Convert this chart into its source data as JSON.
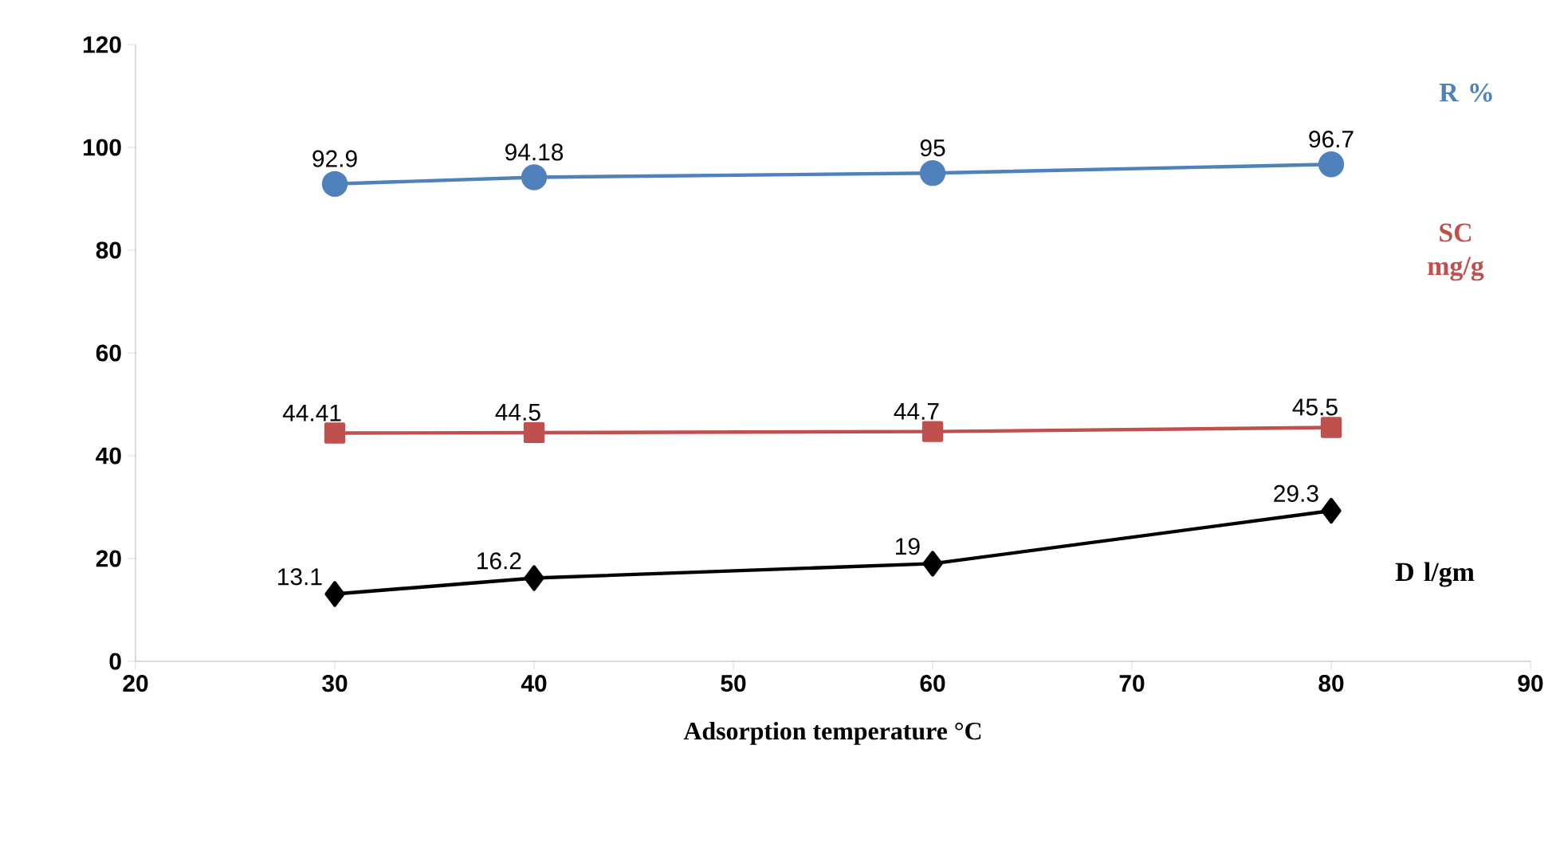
{
  "chart_data": {
    "type": "line",
    "xlabel": "Adsorption temperature °C",
    "x": [
      30,
      40,
      60,
      80
    ],
    "series": [
      {
        "name": "R %",
        "color": "#4f81bd",
        "marker": "circle",
        "values": [
          92.9,
          94.18,
          95,
          96.7
        ]
      },
      {
        "name": "SC mg/g",
        "color": "#c0504d",
        "marker": "square",
        "values": [
          44.41,
          44.5,
          44.7,
          45.5
        ]
      },
      {
        "name": "D l/gm",
        "color": "#000000",
        "marker": "diamond",
        "values": [
          13.1,
          16.2,
          19,
          29.3
        ]
      }
    ],
    "xlim": [
      20,
      90
    ],
    "xticks": [
      20,
      30,
      40,
      50,
      60,
      70,
      80,
      90
    ],
    "ylim": [
      0,
      120
    ],
    "yticks": [
      0,
      20,
      40,
      60,
      80,
      100,
      120
    ],
    "data_labels": true,
    "line_style": "solid"
  }
}
